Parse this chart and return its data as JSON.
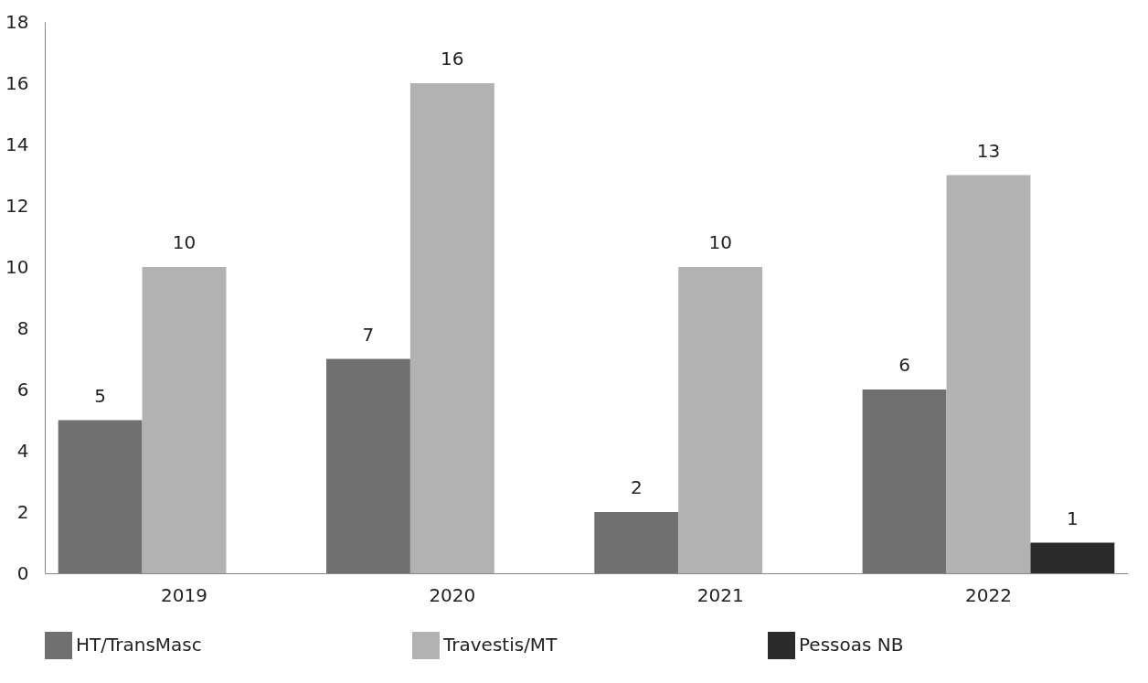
{
  "chart_data": {
    "type": "bar",
    "categories": [
      "2019",
      "2020",
      "2021",
      "2022"
    ],
    "series": [
      {
        "name": "HT/TransMasc",
        "color": "#707070",
        "values": [
          5,
          7,
          2,
          6
        ]
      },
      {
        "name": "Travestis/MT",
        "color": "#b2b2b2",
        "values": [
          10,
          16,
          10,
          13
        ]
      },
      {
        "name": "Pessoas NB",
        "color": "#2b2b2b",
        "values": [
          null,
          null,
          null,
          1
        ]
      }
    ],
    "ylim": [
      0,
      18
    ],
    "yticks": [
      0,
      2,
      4,
      6,
      8,
      10,
      12,
      14,
      16,
      18
    ],
    "data_labels": true,
    "grid": false,
    "legend": "bottom"
  }
}
